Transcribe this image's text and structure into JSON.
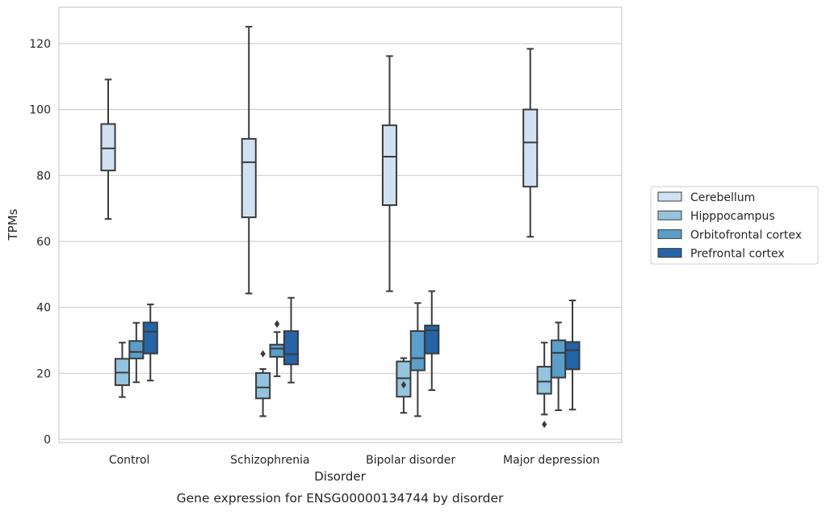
{
  "chart_data": {
    "type": "boxplot",
    "caption": "Gene expression for ENSG00000134744 by disorder",
    "xlabel": "Disorder",
    "ylabel": "TPMs",
    "ylim": [
      -1,
      131
    ],
    "yticks": [
      0,
      20,
      40,
      60,
      80,
      100,
      120
    ],
    "grid": "horizontal",
    "legend_position": "right",
    "categories": [
      "Control",
      "Schizophrenia",
      "Bipolar disorder",
      "Major depression"
    ],
    "series": [
      {
        "name": "Cerebellum",
        "color": "#d0e1f2",
        "boxes": [
          {
            "whislo": 66.8,
            "q1": 81.5,
            "med": 88.2,
            "q3": 95.6,
            "whishi": 109.1,
            "fliers": []
          },
          {
            "whislo": 44.2,
            "q1": 67.3,
            "med": 84.0,
            "q3": 91.1,
            "whishi": 125.1,
            "fliers": []
          },
          {
            "whislo": 44.9,
            "q1": 71.0,
            "med": 85.7,
            "q3": 95.2,
            "whishi": 116.2,
            "fliers": []
          },
          {
            "whislo": 61.4,
            "q1": 76.6,
            "med": 90.0,
            "q3": 100.0,
            "whishi": 118.4,
            "fliers": []
          }
        ]
      },
      {
        "name": "Hipppocampus",
        "color": "#94c4df",
        "boxes": [
          {
            "whislo": 12.8,
            "q1": 16.4,
            "med": 20.2,
            "q3": 24.4,
            "whishi": 29.3,
            "fliers": []
          },
          {
            "whislo": 7.0,
            "q1": 12.4,
            "med": 15.7,
            "q3": 20.1,
            "whishi": 21.3,
            "fliers": [
              25.9
            ]
          },
          {
            "whislo": 8.0,
            "q1": 12.9,
            "med": 18.5,
            "q3": 23.6,
            "whishi": 24.6,
            "fliers": [
              16.5
            ]
          },
          {
            "whislo": 7.5,
            "q1": 13.8,
            "med": 17.5,
            "q3": 22.0,
            "whishi": 29.3,
            "fliers": [
              4.5
            ]
          }
        ]
      },
      {
        "name": "Orbitofrontal cortex",
        "color": "#5a9ec9",
        "boxes": [
          {
            "whislo": 17.3,
            "q1": 24.5,
            "med": 26.5,
            "q3": 29.8,
            "whishi": 35.3,
            "fliers": []
          },
          {
            "whislo": 19.1,
            "q1": 25.0,
            "med": 27.5,
            "q3": 28.7,
            "whishi": 32.5,
            "fliers": [
              34.9,
              35.0
            ]
          },
          {
            "whislo": 7.0,
            "q1": 20.9,
            "med": 24.6,
            "q3": 32.8,
            "whishi": 41.3,
            "fliers": []
          },
          {
            "whislo": 8.8,
            "q1": 18.7,
            "med": 26.2,
            "q3": 30.0,
            "whishi": 35.4,
            "fliers": []
          }
        ]
      },
      {
        "name": "Prefrontal cortex",
        "color": "#2464a7",
        "boxes": [
          {
            "whislo": 17.8,
            "q1": 26.0,
            "med": 32.6,
            "q3": 35.4,
            "whishi": 40.9,
            "fliers": []
          },
          {
            "whislo": 17.2,
            "q1": 22.7,
            "med": 25.8,
            "q3": 32.8,
            "whishi": 42.9,
            "fliers": []
          },
          {
            "whislo": 14.9,
            "q1": 26.0,
            "med": 33.0,
            "q3": 34.5,
            "whishi": 44.9,
            "fliers": []
          },
          {
            "whislo": 9.0,
            "q1": 21.2,
            "med": 27.0,
            "q3": 29.5,
            "whishi": 42.1,
            "fliers": []
          }
        ]
      }
    ]
  }
}
